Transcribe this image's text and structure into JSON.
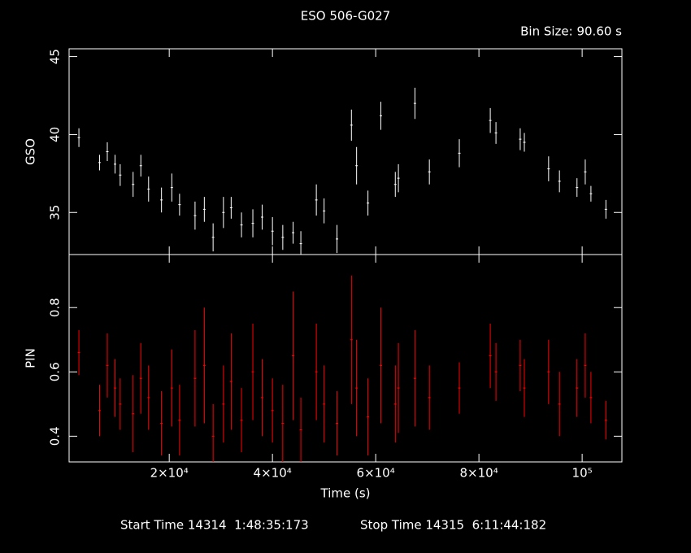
{
  "chart_data": [
    {
      "type": "errorbar",
      "title": "ESO 506-G027",
      "annotation": "Bin Size: 90.60 s",
      "ylabel": "GSO",
      "xlim": [
        600,
        107700
      ],
      "ylim": [
        32.3,
        45.5
      ],
      "yticks": [
        35,
        40,
        45
      ],
      "series": [
        {
          "color": "#ffffff",
          "x": [
            2500,
            6500,
            8000,
            9500,
            10500,
            13000,
            14500,
            16000,
            18500,
            20500,
            22000,
            25000,
            26800,
            28500,
            30500,
            32000,
            34000,
            36200,
            38000,
            40000,
            42000,
            44000,
            45500,
            48500,
            50000,
            52500,
            55300,
            56300,
            58500,
            61000,
            63800,
            64400,
            67600,
            70400,
            76200,
            82200,
            83300,
            88000,
            88800,
            93500,
            95600,
            99000,
            100600,
            101700,
            104600
          ],
          "values": [
            39.8,
            38.2,
            38.9,
            38.1,
            37.4,
            36.8,
            38.0,
            36.5,
            35.8,
            36.6,
            35.5,
            34.8,
            35.2,
            33.4,
            35.0,
            35.3,
            34.2,
            34.3,
            34.7,
            33.8,
            33.4,
            33.7,
            33.0,
            35.8,
            35.1,
            33.3,
            40.6,
            38.0,
            35.6,
            41.2,
            36.8,
            37.2,
            42.0,
            37.6,
            38.8,
            40.9,
            40.1,
            39.7,
            39.5,
            37.8,
            37.0,
            36.6,
            37.6,
            36.2,
            35.2
          ],
          "errors": [
            0.6,
            0.5,
            0.6,
            0.6,
            0.7,
            0.8,
            0.7,
            0.8,
            0.8,
            0.9,
            0.7,
            0.9,
            0.8,
            0.9,
            1.0,
            0.7,
            0.8,
            0.9,
            0.8,
            0.9,
            0.8,
            0.7,
            0.8,
            1.0,
            0.8,
            0.9,
            1.0,
            1.2,
            0.8,
            0.9,
            0.8,
            0.9,
            1.0,
            0.8,
            0.9,
            0.8,
            0.7,
            0.7,
            0.6,
            0.8,
            0.7,
            0.6,
            0.8,
            0.5,
            0.6
          ]
        }
      ]
    },
    {
      "type": "errorbar",
      "ylabel": "PIN",
      "xlabel": "Time (s)",
      "footer": [
        "Start Time 14314  1:48:35:173",
        "Stop Time 14315  6:11:44:182"
      ],
      "xlim": [
        600,
        107700
      ],
      "ylim": [
        0.32,
        0.965
      ],
      "yticks": [
        0.4,
        0.6,
        0.8
      ],
      "xticks": [
        {
          "value": 20000,
          "label": "2×10⁴"
        },
        {
          "value": 40000,
          "label": "4×10⁴"
        },
        {
          "value": 60000,
          "label": "6×10⁴"
        },
        {
          "value": 80000,
          "label": "8×10⁴"
        },
        {
          "value": 100000,
          "label": "10⁵"
        }
      ],
      "series": [
        {
          "color": "#ff0000",
          "x": [
            2500,
            6500,
            8000,
            9500,
            10500,
            13000,
            14500,
            16000,
            18500,
            20500,
            22000,
            25000,
            26800,
            28500,
            30500,
            32000,
            34000,
            36200,
            38000,
            40000,
            42000,
            44000,
            45500,
            48500,
            50000,
            52500,
            55300,
            56300,
            58500,
            61000,
            63800,
            64400,
            67600,
            70400,
            76200,
            82200,
            83300,
            88000,
            88800,
            93500,
            95600,
            99000,
            100600,
            101700,
            104600
          ],
          "values": [
            0.66,
            0.48,
            0.62,
            0.55,
            0.5,
            0.47,
            0.58,
            0.52,
            0.44,
            0.55,
            0.45,
            0.58,
            0.62,
            0.4,
            0.5,
            0.57,
            0.45,
            0.6,
            0.52,
            0.48,
            0.44,
            0.65,
            0.42,
            0.6,
            0.5,
            0.44,
            0.7,
            0.55,
            0.46,
            0.62,
            0.5,
            0.55,
            0.58,
            0.52,
            0.55,
            0.65,
            0.6,
            0.62,
            0.55,
            0.6,
            0.5,
            0.55,
            0.62,
            0.52,
            0.45
          ],
          "errors": [
            0.07,
            0.08,
            0.1,
            0.09,
            0.08,
            0.12,
            0.11,
            0.1,
            0.1,
            0.12,
            0.11,
            0.15,
            0.18,
            0.1,
            0.12,
            0.15,
            0.1,
            0.15,
            0.12,
            0.1,
            0.12,
            0.2,
            0.1,
            0.15,
            0.12,
            0.1,
            0.2,
            0.15,
            0.12,
            0.18,
            0.12,
            0.14,
            0.15,
            0.1,
            0.08,
            0.1,
            0.09,
            0.08,
            0.09,
            0.1,
            0.1,
            0.09,
            0.1,
            0.08,
            0.06
          ]
        }
      ]
    }
  ]
}
